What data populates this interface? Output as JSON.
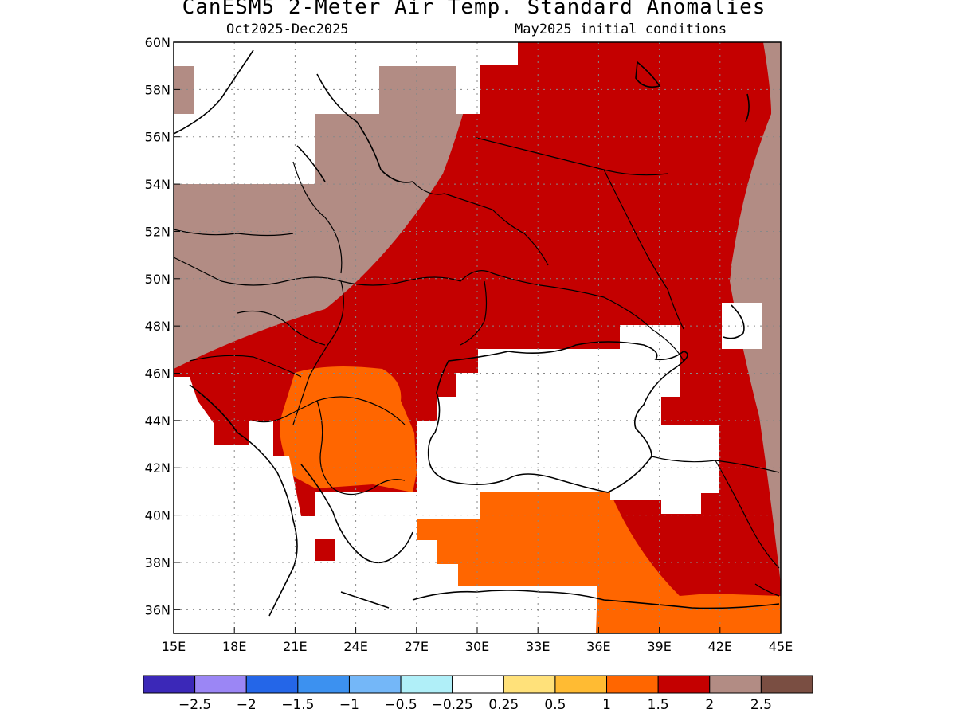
{
  "header": {
    "title": "CanESM5 2-Meter Air Temp. Standard Anomalies",
    "period": "Oct2025-Dec2025",
    "init": "May2025 initial conditions"
  },
  "map": {
    "lon_range": [
      15,
      45
    ],
    "lat_range": [
      35,
      60
    ],
    "lon_ticks": [
      "15E",
      "18E",
      "21E",
      "24E",
      "27E",
      "30E",
      "33E",
      "36E",
      "39E",
      "42E",
      "45E"
    ],
    "lat_ticks": [
      "60N",
      "58N",
      "56N",
      "54N",
      "52N",
      "50N",
      "48N",
      "46N",
      "44N",
      "42N",
      "40N",
      "38N",
      "36N"
    ],
    "grid": true
  },
  "colorbar": {
    "colors": [
      "#3b28b8",
      "#9b86f5",
      "#2466e8",
      "#3c91f0",
      "#74b7f8",
      "#b0eff8",
      "#ffffff",
      "#ffe17a",
      "#ffbb33",
      "#ff6600",
      "#c40000",
      "#b28c84",
      "#7a4e42"
    ],
    "labels": [
      "-2.5",
      "-2",
      "-1.5",
      "-1",
      "-0.5",
      "-0.25",
      "0.25",
      "0.5",
      "1",
      "1.5",
      "2",
      "2.5"
    ]
  },
  "colors": {
    "brown": "#b28c84",
    "red": "#c40000",
    "orange": "#ff6600",
    "white": "#ffffff"
  }
}
